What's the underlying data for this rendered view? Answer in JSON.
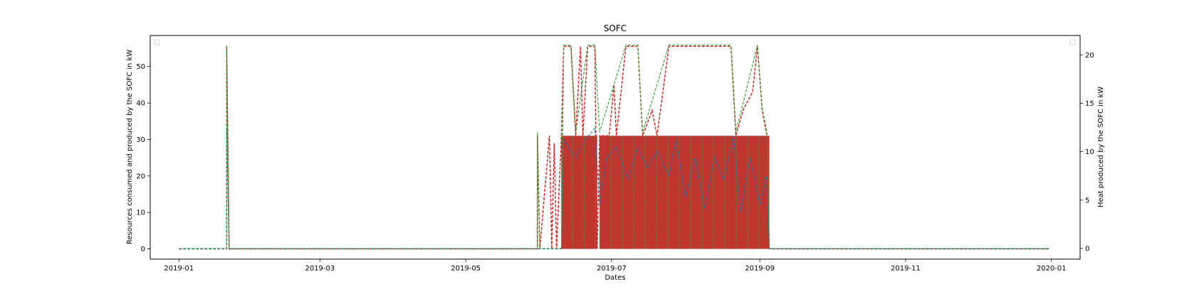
{
  "chart_data": {
    "type": "line",
    "title": "SOFC",
    "xlabel": "Dates",
    "ylabel_left": "Resources consumed and produced by the SOFC in kW",
    "ylabel_right": "Heat produced by the SOFC in kW",
    "x_ticks": [
      "2019-01",
      "2019-03",
      "2019-05",
      "2019-07",
      "2019-09",
      "2019-11",
      "2020-01"
    ],
    "y_ticks_left": [
      0,
      10,
      20,
      30,
      40,
      50
    ],
    "y_ticks_right": [
      0,
      5,
      10,
      15,
      20
    ],
    "ylim_left": [
      -2.8,
      58.5
    ],
    "ylim_right": [
      -1.1,
      22.0
    ],
    "xlim": [
      "2018-12-20",
      "2020-01-13"
    ],
    "legend_left": "top-left",
    "legend_right": "top-right",
    "grid": false,
    "colors": {
      "consumed": "#2ca02c",
      "electricity": "#1f77b4",
      "heat": "#d62728",
      "fill": "#b5281f"
    },
    "series": [
      {
        "style": "dashed",
        "axis": "left",
        "points": [
          [
            "2019-01-01",
            0
          ],
          [
            "2019-01-21",
            0
          ],
          [
            "2019-01-21",
            55.5
          ],
          [
            "2019-01-22",
            0
          ],
          [
            "2019-05-31",
            0
          ],
          [
            "2019-05-31",
            31
          ],
          [
            "2019-06-01",
            0
          ],
          [
            "2019-06-05",
            31
          ],
          [
            "2019-06-06",
            0
          ],
          [
            "2019-06-07",
            29
          ],
          [
            "2019-06-08",
            0
          ],
          [
            "2019-06-10",
            31
          ],
          [
            "2019-06-11",
            55.5
          ],
          [
            "2019-06-14",
            55.5
          ],
          [
            "2019-06-16",
            31
          ],
          [
            "2019-06-18",
            55.5
          ],
          [
            "2019-06-19",
            31
          ],
          [
            "2019-06-21",
            55.5
          ],
          [
            "2019-06-24",
            55.5
          ],
          [
            "2019-06-25",
            0
          ],
          [
            "2019-06-26",
            31
          ],
          [
            "2019-06-30",
            31
          ],
          [
            "2019-07-02",
            45
          ],
          [
            "2019-07-03",
            31
          ],
          [
            "2019-07-07",
            55.5
          ],
          [
            "2019-07-12",
            55.5
          ],
          [
            "2019-07-14",
            31
          ],
          [
            "2019-07-18",
            38
          ],
          [
            "2019-07-20",
            31
          ],
          [
            "2019-07-25",
            55.5
          ],
          [
            "2019-07-28",
            55.5
          ],
          [
            "2019-08-03",
            55.5
          ],
          [
            "2019-08-10",
            55.5
          ],
          [
            "2019-08-20",
            55.5
          ],
          [
            "2019-08-22",
            31
          ],
          [
            "2019-08-25",
            38
          ],
          [
            "2019-08-29",
            43
          ],
          [
            "2019-08-31",
            55.5
          ],
          [
            "2019-09-02",
            38
          ],
          [
            "2019-09-04",
            31
          ],
          [
            "2019-09-05",
            0
          ],
          [
            "2019-12-31",
            0
          ]
        ]
      },
      {
        "style": "dashed",
        "axis": "left",
        "points": [
          [
            "2019-01-01",
            0
          ],
          [
            "2019-01-21",
            0
          ],
          [
            "2019-01-21",
            33
          ],
          [
            "2019-01-22",
            0
          ],
          [
            "2019-06-10",
            0
          ],
          [
            "2019-06-11",
            30
          ],
          [
            "2019-06-16",
            25
          ],
          [
            "2019-06-20",
            30
          ],
          [
            "2019-06-24",
            33
          ],
          [
            "2019-06-26",
            12
          ],
          [
            "2019-06-29",
            25
          ],
          [
            "2019-07-03",
            28
          ],
          [
            "2019-07-08",
            19
          ],
          [
            "2019-07-12",
            28
          ],
          [
            "2019-07-16",
            22
          ],
          [
            "2019-07-20",
            27
          ],
          [
            "2019-07-25",
            20
          ],
          [
            "2019-07-28",
            30
          ],
          [
            "2019-08-01",
            14
          ],
          [
            "2019-08-05",
            25
          ],
          [
            "2019-08-09",
            11
          ],
          [
            "2019-08-13",
            25
          ],
          [
            "2019-08-17",
            19
          ],
          [
            "2019-08-21",
            31
          ],
          [
            "2019-08-24",
            10
          ],
          [
            "2019-08-28",
            25
          ],
          [
            "2019-09-01",
            12
          ],
          [
            "2019-09-04",
            20
          ],
          [
            "2019-09-05",
            0
          ],
          [
            "2019-12-31",
            0
          ]
        ]
      },
      {
        "style": "dashed",
        "axis": "right",
        "points": [
          [
            "2019-01-01",
            0
          ],
          [
            "2019-01-21",
            0
          ],
          [
            "2019-01-21",
            21
          ],
          [
            "2019-01-22",
            0
          ],
          [
            "2019-05-31",
            0
          ],
          [
            "2019-05-31",
            12
          ],
          [
            "2019-06-01",
            0
          ],
          [
            "2019-06-10",
            0
          ],
          [
            "2019-06-11",
            21
          ],
          [
            "2019-06-14",
            21
          ],
          [
            "2019-06-16",
            12
          ],
          [
            "2019-06-21",
            21
          ],
          [
            "2019-06-24",
            21
          ],
          [
            "2019-06-26",
            12
          ],
          [
            "2019-07-07",
            21
          ],
          [
            "2019-07-12",
            21
          ],
          [
            "2019-07-14",
            12
          ],
          [
            "2019-07-25",
            21
          ],
          [
            "2019-08-10",
            21
          ],
          [
            "2019-08-20",
            21
          ],
          [
            "2019-08-22",
            12
          ],
          [
            "2019-08-31",
            21
          ],
          [
            "2019-09-02",
            14.5
          ],
          [
            "2019-09-04",
            12
          ],
          [
            "2019-09-05",
            0
          ],
          [
            "2019-12-31",
            0
          ]
        ]
      }
    ],
    "dense_band": {
      "axis": "left",
      "segments": [
        {
          "start": "2019-06-10",
          "end": "2019-06-25",
          "base": 31
        },
        {
          "start": "2019-06-26",
          "end": "2019-09-05",
          "base": 31
        }
      ]
    }
  }
}
